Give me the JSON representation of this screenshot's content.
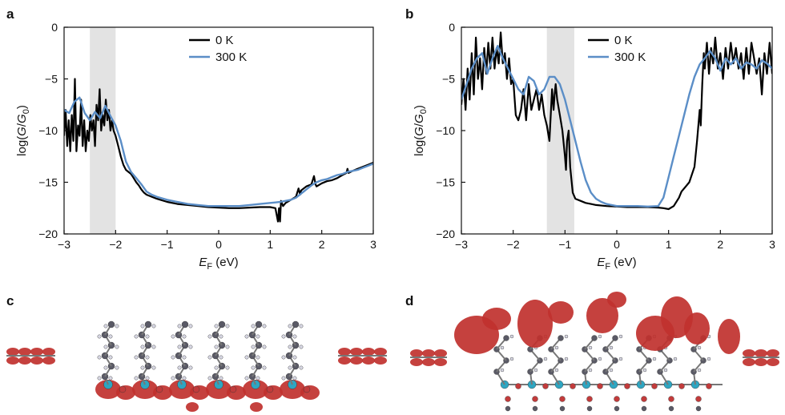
{
  "panels": {
    "a": "a",
    "b": "b",
    "c": "c",
    "d": "d"
  },
  "colors": {
    "k0": "#000000",
    "k300": "#5b8ec7",
    "shade": "#e3e3e3",
    "orbital": "#c0312e",
    "carbon": "#5a5a66",
    "hydrogen": "#d8d8e4",
    "silicon": "#2ea6c2",
    "oxygen": "#c23b3b"
  },
  "chart_data": [
    {
      "type": "line",
      "panel": "a",
      "xlabel_main": "E",
      "xlabel_sub": "F",
      "xlabel_unit": " (eV)",
      "ylabel": "log(G/G0)",
      "ylabel_parts": [
        "log(",
        "G",
        "/",
        "G",
        "0",
        ")"
      ],
      "xlim": [
        -3,
        3
      ],
      "ylim": [
        -20,
        0
      ],
      "xticks": [
        "−3",
        "−2",
        "−1",
        "0",
        "1",
        "2",
        "3"
      ],
      "yticks": [
        "0",
        "−5",
        "−10",
        "−15",
        "−20"
      ],
      "shaded_region": [
        -2.5,
        -2.0
      ],
      "legend_position": "top-center",
      "series": [
        {
          "name": "0 K",
          "color": "#000000",
          "x": [
            -3.0,
            -2.97,
            -2.94,
            -2.91,
            -2.88,
            -2.85,
            -2.82,
            -2.79,
            -2.76,
            -2.73,
            -2.7,
            -2.67,
            -2.64,
            -2.61,
            -2.58,
            -2.55,
            -2.52,
            -2.49,
            -2.46,
            -2.43,
            -2.4,
            -2.37,
            -2.34,
            -2.31,
            -2.28,
            -2.25,
            -2.22,
            -2.19,
            -2.16,
            -2.13,
            -2.1,
            -2.07,
            -2.04,
            -2.0,
            -1.95,
            -1.9,
            -1.85,
            -1.8,
            -1.75,
            -1.7,
            -1.65,
            -1.6,
            -1.55,
            -1.5,
            -1.45,
            -1.4,
            -1.3,
            -1.2,
            -1.0,
            -0.8,
            -0.6,
            -0.4,
            -0.2,
            0.0,
            0.2,
            0.4,
            0.6,
            0.8,
            1.0,
            1.1,
            1.15,
            1.17,
            1.19,
            1.21,
            1.25,
            1.3,
            1.4,
            1.5,
            1.55,
            1.58,
            1.6,
            1.7,
            1.8,
            1.85,
            1.88,
            1.9,
            2.0,
            2.1,
            2.2,
            2.3,
            2.4,
            2.48,
            2.5,
            2.52,
            2.6,
            2.7,
            2.8,
            2.9,
            3.0
          ],
          "y": [
            -10.5,
            -8.0,
            -11.5,
            -9.0,
            -12.0,
            -8.5,
            -11.0,
            -5.0,
            -12.0,
            -9.5,
            -10.5,
            -7.0,
            -11.5,
            -9.0,
            -12.0,
            -10.0,
            -11.0,
            -8.5,
            -10.0,
            -9.0,
            -11.5,
            -7.5,
            -9.0,
            -6.0,
            -10.0,
            -8.5,
            -9.5,
            -7.0,
            -9.0,
            -8.0,
            -10.0,
            -9.0,
            -10.0,
            -10.5,
            -11.5,
            -12.5,
            -13.3,
            -13.8,
            -14.0,
            -14.2,
            -14.6,
            -15.0,
            -15.3,
            -15.7,
            -16.0,
            -16.2,
            -16.4,
            -16.6,
            -16.9,
            -17.1,
            -17.2,
            -17.3,
            -17.4,
            -17.45,
            -17.5,
            -17.5,
            -17.45,
            -17.4,
            -17.4,
            -17.5,
            -18.8,
            -17.5,
            -18.8,
            -16.8,
            -17.3,
            -17.0,
            -16.7,
            -16.4,
            -15.6,
            -16.2,
            -15.8,
            -15.4,
            -15.2,
            -14.4,
            -15.2,
            -15.4,
            -15.1,
            -14.9,
            -14.8,
            -14.6,
            -14.3,
            -14.1,
            -13.7,
            -14.1,
            -13.9,
            -13.7,
            -13.5,
            -13.3,
            -13.1
          ]
        },
        {
          "name": "300 K",
          "color": "#5b8ec7",
          "x": [
            -3.0,
            -2.9,
            -2.8,
            -2.7,
            -2.6,
            -2.5,
            -2.4,
            -2.3,
            -2.2,
            -2.1,
            -2.0,
            -1.9,
            -1.8,
            -1.7,
            -1.6,
            -1.5,
            -1.4,
            -1.3,
            -1.2,
            -1.0,
            -0.8,
            -0.6,
            -0.4,
            -0.2,
            0.0,
            0.2,
            0.4,
            0.6,
            0.8,
            1.0,
            1.1,
            1.2,
            1.3,
            1.4,
            1.5,
            1.6,
            1.7,
            1.8,
            1.9,
            2.0,
            2.1,
            2.2,
            2.3,
            2.4,
            2.5,
            2.6,
            2.7,
            2.8,
            2.9,
            3.0
          ],
          "y": [
            -8.0,
            -8.3,
            -7.2,
            -6.8,
            -8.3,
            -9.0,
            -8.2,
            -8.8,
            -7.6,
            -8.6,
            -9.5,
            -11.0,
            -13.0,
            -14.0,
            -14.6,
            -15.2,
            -15.9,
            -16.2,
            -16.4,
            -16.7,
            -16.9,
            -17.1,
            -17.2,
            -17.3,
            -17.3,
            -17.3,
            -17.3,
            -17.2,
            -17.1,
            -17.0,
            -16.95,
            -16.9,
            -16.8,
            -16.7,
            -16.5,
            -16.1,
            -15.7,
            -15.3,
            -15.0,
            -14.8,
            -14.7,
            -14.5,
            -14.3,
            -14.2,
            -14.0,
            -13.9,
            -13.8,
            -13.6,
            -13.4,
            -13.2
          ]
        }
      ]
    },
    {
      "type": "line",
      "panel": "b",
      "xlabel_main": "E",
      "xlabel_sub": "F",
      "xlabel_unit": " (eV)",
      "ylabel": "log(G/G0)",
      "ylabel_parts": [
        "log(",
        "G",
        "/",
        "G",
        "0",
        ")"
      ],
      "xlim": [
        -3,
        3
      ],
      "ylim": [
        -20,
        0
      ],
      "xticks": [
        "−3",
        "−2",
        "−1",
        "0",
        "1",
        "2",
        "3"
      ],
      "yticks": [
        "0",
        "−5",
        "−10",
        "−15",
        "−20"
      ],
      "shaded_region": [
        -1.35,
        -0.82
      ],
      "legend_position": "top-right",
      "series": [
        {
          "name": "0 K",
          "color": "#000000",
          "x": [
            -3.0,
            -2.96,
            -2.92,
            -2.88,
            -2.84,
            -2.8,
            -2.76,
            -2.72,
            -2.68,
            -2.64,
            -2.6,
            -2.56,
            -2.52,
            -2.48,
            -2.44,
            -2.4,
            -2.36,
            -2.32,
            -2.28,
            -2.24,
            -2.2,
            -2.16,
            -2.12,
            -2.08,
            -2.04,
            -2.0,
            -1.95,
            -1.9,
            -1.85,
            -1.8,
            -1.75,
            -1.7,
            -1.65,
            -1.6,
            -1.55,
            -1.5,
            -1.45,
            -1.4,
            -1.35,
            -1.3,
            -1.25,
            -1.22,
            -1.2,
            -1.18,
            -1.15,
            -1.1,
            -1.05,
            -1.0,
            -0.98,
            -0.96,
            -0.93,
            -0.9,
            -0.85,
            -0.8,
            -0.7,
            -0.6,
            -0.5,
            -0.4,
            -0.2,
            0.0,
            0.2,
            0.4,
            0.6,
            0.8,
            0.9,
            1.0,
            1.1,
            1.2,
            1.25,
            1.3,
            1.4,
            1.5,
            1.55,
            1.6,
            1.62,
            1.65,
            1.68,
            1.7,
            1.74,
            1.78,
            1.82,
            1.86,
            1.9,
            1.95,
            2.0,
            2.05,
            2.1,
            2.15,
            2.2,
            2.25,
            2.3,
            2.35,
            2.4,
            2.45,
            2.5,
            2.55,
            2.6,
            2.65,
            2.7,
            2.75,
            2.8,
            2.85,
            2.9,
            2.95,
            3.0
          ],
          "y": [
            -7.5,
            -5.0,
            -8.0,
            -4.0,
            -7.0,
            -2.5,
            -6.5,
            -1.0,
            -5.0,
            -3.0,
            -6.0,
            -2.0,
            -4.5,
            -1.5,
            -4.0,
            -1.0,
            -4.0,
            -2.0,
            -3.5,
            -0.5,
            -3.5,
            -2.5,
            -5.0,
            -3.0,
            -5.5,
            -5.0,
            -8.5,
            -9.0,
            -8.0,
            -6.0,
            -9.0,
            -5.5,
            -8.0,
            -7.0,
            -6.0,
            -8.0,
            -6.5,
            -8.5,
            -9.5,
            -11.0,
            -6.0,
            -8.0,
            -6.5,
            -5.5,
            -7.0,
            -8.5,
            -10.0,
            -12.5,
            -13.8,
            -11.0,
            -10.0,
            -13.5,
            -16.0,
            -16.6,
            -16.8,
            -17.0,
            -17.1,
            -17.2,
            -17.3,
            -17.35,
            -17.4,
            -17.4,
            -17.4,
            -17.45,
            -17.5,
            -17.6,
            -17.3,
            -16.5,
            -15.9,
            -15.6,
            -15.0,
            -13.5,
            -11.0,
            -8.0,
            -9.5,
            -5.5,
            -2.5,
            -4.0,
            -1.5,
            -4.5,
            -2.0,
            -3.5,
            -1.0,
            -4.0,
            -2.5,
            -5.0,
            -2.0,
            -4.0,
            -1.5,
            -3.5,
            -2.0,
            -4.0,
            -2.5,
            -5.0,
            -2.0,
            -4.5,
            -1.5,
            -3.0,
            -4.5,
            -3.0,
            -6.5,
            -2.5,
            -4.5,
            -1.5,
            -4.5
          ]
        },
        {
          "name": "300 K",
          "color": "#5b8ec7",
          "x": [
            -3.0,
            -2.9,
            -2.8,
            -2.7,
            -2.6,
            -2.5,
            -2.4,
            -2.3,
            -2.2,
            -2.1,
            -2.0,
            -1.9,
            -1.8,
            -1.7,
            -1.6,
            -1.5,
            -1.4,
            -1.3,
            -1.2,
            -1.1,
            -1.0,
            -0.9,
            -0.8,
            -0.7,
            -0.6,
            -0.5,
            -0.4,
            -0.3,
            -0.2,
            0.0,
            0.2,
            0.4,
            0.6,
            0.8,
            0.9,
            1.0,
            1.1,
            1.2,
            1.3,
            1.4,
            1.5,
            1.6,
            1.7,
            1.8,
            1.9,
            2.0,
            2.1,
            2.2,
            2.3,
            2.4,
            2.5,
            2.6,
            2.7,
            2.8,
            2.9,
            3.0
          ],
          "y": [
            -7.0,
            -5.5,
            -4.0,
            -3.0,
            -2.5,
            -4.5,
            -3.0,
            -1.8,
            -3.0,
            -4.0,
            -5.0,
            -6.0,
            -6.5,
            -4.8,
            -5.2,
            -6.5,
            -6.0,
            -4.8,
            -4.8,
            -5.5,
            -7.0,
            -9.0,
            -11.0,
            -13.0,
            -14.8,
            -16.0,
            -16.6,
            -16.9,
            -17.1,
            -17.3,
            -17.3,
            -17.3,
            -17.35,
            -17.3,
            -16.5,
            -14.5,
            -12.5,
            -10.5,
            -8.5,
            -6.5,
            -4.8,
            -3.6,
            -3.0,
            -2.3,
            -3.0,
            -4.2,
            -3.0,
            -3.6,
            -3.0,
            -4.0,
            -3.4,
            -3.6,
            -4.0,
            -3.2,
            -3.5,
            -4.0
          ]
        }
      ]
    }
  ]
}
